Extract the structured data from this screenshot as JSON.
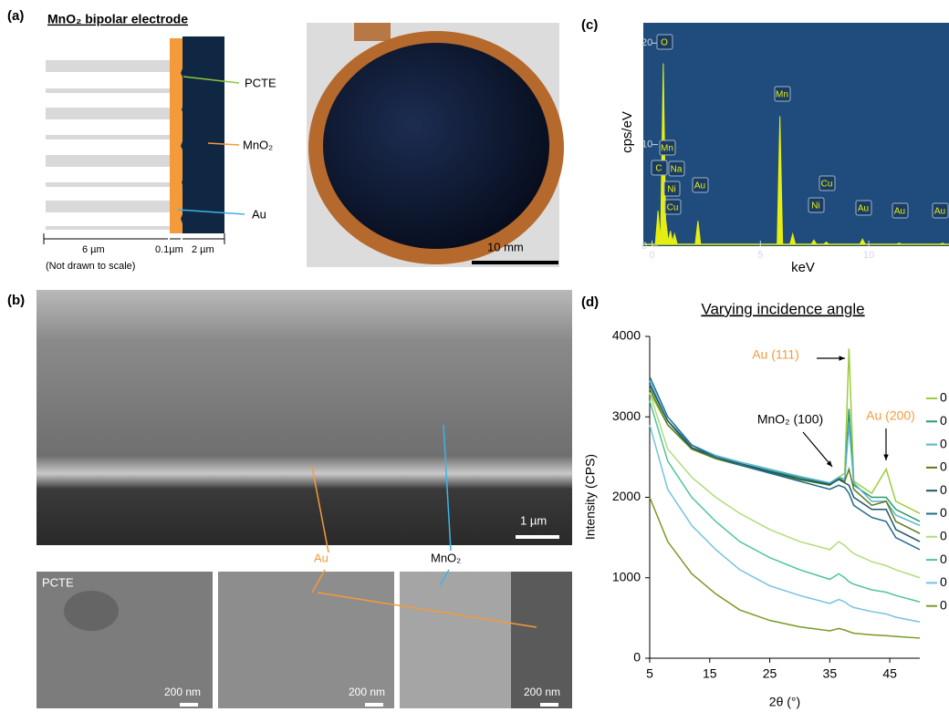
{
  "panel_a": {
    "label": "(a)",
    "title": "MnO₂ bipolar electrode",
    "callouts": [
      "PCTE",
      "MnO₂",
      "Au"
    ],
    "dimensions": [
      "6 µm",
      "0.1µm",
      "2 µm"
    ],
    "note": "(Not drawn to scale)",
    "photo_scale": "10 mm"
  },
  "panel_b": {
    "label": "(b)",
    "scale_main": "1 µm",
    "callouts": [
      "Au",
      "MnO₂"
    ],
    "inset_label": "PCTE",
    "inset_scales": [
      "200 nm",
      "200 nm",
      "200 nm"
    ]
  },
  "chart_data": [
    {
      "type": "spectrum",
      "label": "(c)",
      "xlabel": "keV",
      "ylabel": "cps/eV",
      "color": "#e6ee10",
      "background": "#1f4c7c",
      "x": [
        0.28,
        0.52,
        0.64,
        0.85,
        1.04,
        2.12,
        5.9,
        6.49,
        7.47,
        8.04,
        9.71,
        11.4,
        13.4
      ],
      "values": [
        3.5,
        18,
        2.5,
        1.5,
        1.2,
        2.5,
        12.8,
        1.2,
        0.6,
        0.4,
        0.7,
        0.3,
        0.3
      ],
      "peak_labels": [
        "O",
        "Mn",
        "C",
        "Na",
        "Ni",
        "Cu",
        "Au",
        "Mn",
        "Ni",
        "Cu",
        "Au",
        "Au",
        "Au"
      ],
      "xlim": [
        -0.4,
        13.7
      ],
      "ylim": [
        0,
        22
      ],
      "xticks": [
        0,
        5,
        10
      ],
      "yticks": [
        0,
        10,
        20
      ]
    },
    {
      "type": "line",
      "label": "(d)",
      "title": "Varying incidence angle",
      "xlabel": "2θ (°)",
      "ylabel": "Intensity (CPS)",
      "annotations": [
        "Au (111)",
        "MnO₂ (100)",
        "Au (200)"
      ],
      "x": [
        5,
        8,
        12,
        16,
        20,
        25,
        30,
        35,
        36.5,
        37.5,
        38.2,
        39,
        42,
        44.4,
        46,
        50
      ],
      "series": [
        {
          "name": "0",
          "color": "#9ccc3c",
          "values": [
            3300,
            2900,
            2600,
            2480,
            2400,
            2320,
            2230,
            2150,
            2250,
            2300,
            3850,
            2200,
            2050,
            2350,
            1950,
            1800
          ]
        },
        {
          "name": "0",
          "color": "#2a9a6c",
          "values": [
            3400,
            2950,
            2600,
            2500,
            2420,
            2330,
            2250,
            2170,
            2240,
            2200,
            3100,
            2150,
            2000,
            2000,
            1850,
            1700
          ]
        },
        {
          "name": "0",
          "color": "#56b4d2",
          "values": [
            3450,
            2950,
            2650,
            2520,
            2440,
            2350,
            2260,
            2180,
            2250,
            2230,
            2900,
            2180,
            1950,
            1950,
            1780,
            1650
          ]
        },
        {
          "name": "0",
          "color": "#5c7a1e",
          "values": [
            3350,
            2900,
            2600,
            2480,
            2400,
            2310,
            2220,
            2150,
            2230,
            2200,
            2350,
            2100,
            1900,
            1950,
            1700,
            1550
          ]
        },
        {
          "name": "0",
          "color": "#1d5566",
          "values": [
            3400,
            2950,
            2620,
            2500,
            2420,
            2320,
            2230,
            2160,
            2220,
            2180,
            2150,
            2000,
            1850,
            1850,
            1600,
            1450
          ]
        },
        {
          "name": "0",
          "color": "#1f6b8a",
          "values": [
            3500,
            3000,
            2650,
            2500,
            2400,
            2300,
            2200,
            2100,
            2150,
            2120,
            2050,
            1900,
            1750,
            1700,
            1500,
            1350
          ]
        },
        {
          "name": "0",
          "color": "#b2dc7a",
          "values": [
            3300,
            2600,
            2250,
            2000,
            1800,
            1600,
            1450,
            1350,
            1450,
            1400,
            1350,
            1300,
            1200,
            1150,
            1100,
            1000
          ]
        },
        {
          "name": "0",
          "color": "#4fc596",
          "values": [
            3200,
            2450,
            2000,
            1700,
            1450,
            1250,
            1100,
            980,
            1050,
            1000,
            950,
            920,
            850,
            820,
            780,
            700
          ]
        },
        {
          "name": "0",
          "color": "#74c3de",
          "values": [
            2900,
            2100,
            1650,
            1350,
            1100,
            900,
            780,
            680,
            730,
            700,
            660,
            630,
            580,
            550,
            510,
            450
          ]
        },
        {
          "name": "0",
          "color": "#7a9a24",
          "values": [
            2000,
            1450,
            1050,
            800,
            600,
            470,
            390,
            340,
            370,
            350,
            330,
            310,
            290,
            280,
            270,
            250
          ]
        }
      ],
      "xlim": [
        5,
        50
      ],
      "ylim": [
        0,
        4000
      ],
      "xticks": [
        5,
        15,
        25,
        35,
        45
      ],
      "yticks": [
        0,
        1000,
        2000,
        3000,
        4000
      ]
    }
  ]
}
